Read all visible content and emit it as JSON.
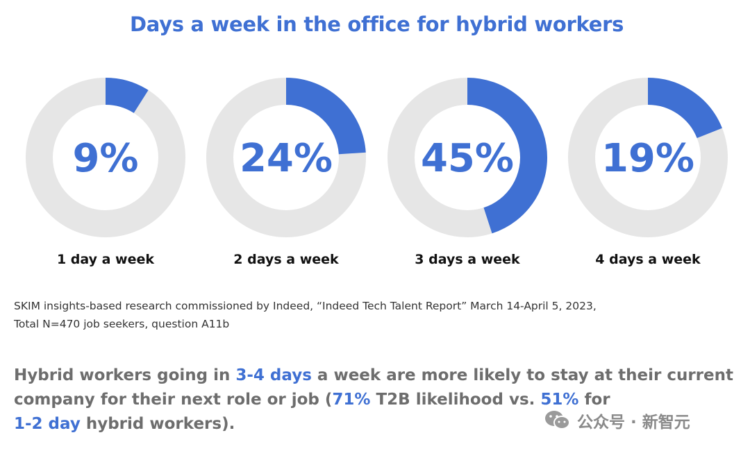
{
  "title": "Days a week in the office for hybrid workers",
  "chart_data": {
    "type": "pie",
    "title": "Days a week in the office for hybrid workers",
    "categories": [
      "1 day a week",
      "2 days a week",
      "3 days a week",
      "4 days a week"
    ],
    "values": [
      9,
      24,
      45,
      19
    ],
    "value_labels": [
      "9%",
      "24%",
      "45%",
      "19%"
    ],
    "unit": "%",
    "style": "donut",
    "colors": {
      "filled": "#3f70d3",
      "remainder": "#e6e6e6"
    }
  },
  "source": {
    "line1": "SKIM insights-based research commissioned by Indeed, “Indeed Tech Talent Report” March 14-April 5, 2023,",
    "line2": "Total N=470 job seekers, question A11b"
  },
  "summary": {
    "l1a": "Hybrid workers going in ",
    "l1b": "3-4 days",
    "l1c": " a week are more likely to stay at their current",
    "l2a": "company for their next role or job (",
    "l2b": "71%",
    "l2c": " T2B likelihood vs. ",
    "l2d": "51%",
    "l2e": " for",
    "l3a": "1-2 day",
    "l3b": " hybrid workers)."
  },
  "watermark": {
    "text": "公众号 · 新智元",
    "icon": "wechat-icon"
  }
}
